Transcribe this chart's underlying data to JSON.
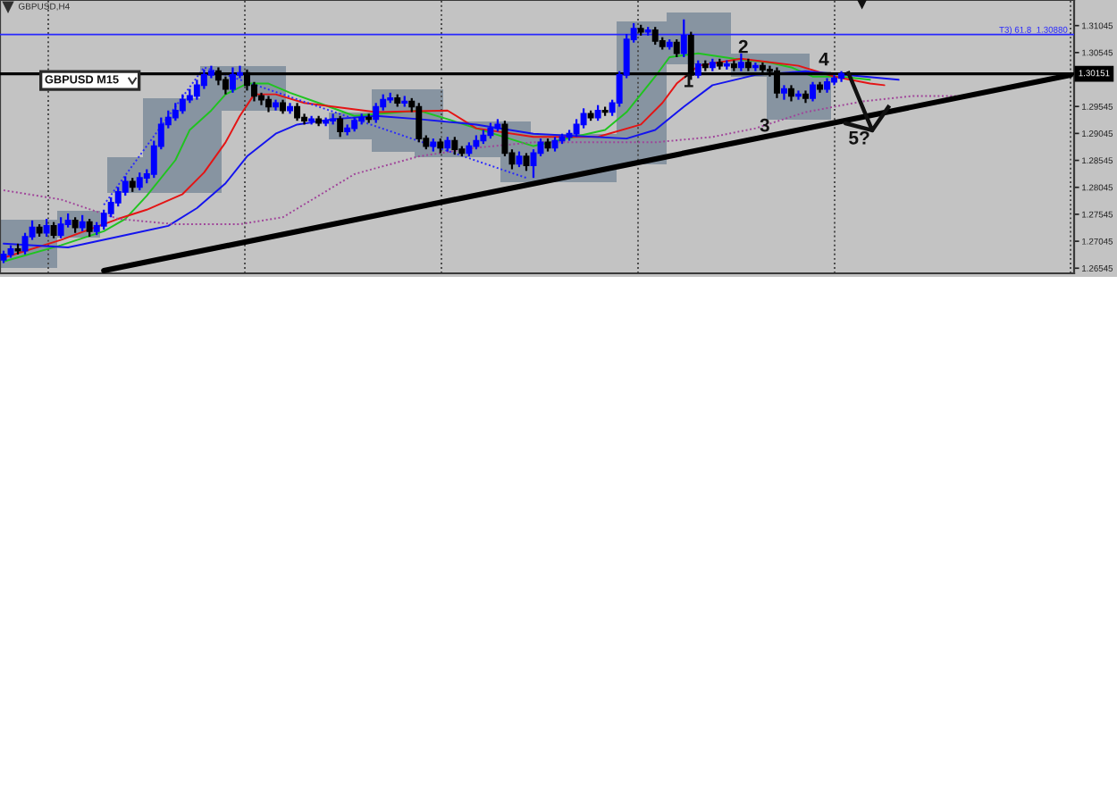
{
  "chart_data": {
    "type": "candlestick",
    "title": "GBPUSD,H4",
    "categories": [
      null,
      null,
      null,
      null,
      null,
      null,
      null,
      null,
      null,
      null,
      null,
      null,
      null,
      null,
      null,
      null,
      null,
      null,
      null,
      null,
      null,
      null,
      null,
      null,
      null,
      null,
      null,
      null,
      null,
      null,
      null,
      null,
      null,
      null,
      null,
      null,
      null,
      null,
      null,
      null,
      null,
      null,
      null,
      null,
      null,
      null,
      null,
      null,
      null,
      null,
      null,
      null,
      null,
      null,
      null,
      null,
      null,
      null,
      null,
      null,
      null,
      null,
      null,
      null,
      null,
      null,
      null,
      null,
      null,
      null,
      null,
      null,
      null,
      null,
      null,
      null,
      null,
      null,
      null,
      null,
      null,
      null,
      null,
      null,
      null,
      null,
      null,
      null,
      null,
      null,
      null,
      null,
      null,
      null,
      null,
      null,
      null,
      null,
      null,
      null,
      null,
      null,
      null,
      null,
      null,
      null,
      null,
      null,
      null,
      null,
      null,
      null,
      null,
      null,
      null,
      null,
      null,
      null,
      null,
      null,
      null,
      null,
      null,
      null,
      null,
      null,
      null,
      null,
      null,
      null,
      null,
      null,
      null,
      null,
      null,
      null,
      null,
      null,
      null,
      null,
      null,
      null,
      null,
      null,
      null,
      null,
      null,
      null,
      null,
      null
    ],
    "ohlc": [
      [
        1.267,
        1.2687,
        1.2664,
        1.268
      ],
      [
        1.268,
        1.2697,
        1.2674,
        1.269
      ],
      [
        1.269,
        1.27,
        1.268,
        1.2687
      ],
      [
        1.2687,
        1.272,
        1.268,
        1.2713
      ],
      [
        1.2713,
        1.2743,
        1.2707,
        1.273
      ],
      [
        1.273,
        1.2736,
        1.2713,
        1.272
      ],
      [
        1.272,
        1.2746,
        1.2713,
        1.2733
      ],
      [
        1.2733,
        1.274,
        1.271,
        1.2716
      ],
      [
        1.2716,
        1.2749,
        1.271,
        1.2736
      ],
      [
        1.2736,
        1.2756,
        1.273,
        1.2743
      ],
      [
        1.2743,
        1.2749,
        1.272,
        1.273
      ],
      [
        1.273,
        1.2753,
        1.2723,
        1.274
      ],
      [
        1.274,
        1.2746,
        1.2713,
        1.2723
      ],
      [
        1.2723,
        1.274,
        1.2716,
        1.2733
      ],
      [
        1.2733,
        1.2763,
        1.2726,
        1.2756
      ],
      [
        1.2756,
        1.2786,
        1.2749,
        1.2776
      ],
      [
        1.2776,
        1.2805,
        1.2769,
        1.2796
      ],
      [
        1.2796,
        1.2825,
        1.2789,
        1.2815
      ],
      [
        1.2815,
        1.2822,
        1.2796,
        1.2805
      ],
      [
        1.2805,
        1.2832,
        1.2799,
        1.2822
      ],
      [
        1.2822,
        1.2838,
        1.2812,
        1.2829
      ],
      [
        1.2829,
        1.2891,
        1.2822,
        1.2881
      ],
      [
        1.2881,
        1.2934,
        1.2875,
        1.2921
      ],
      [
        1.2921,
        1.2947,
        1.2914,
        1.2934
      ],
      [
        1.2934,
        1.2961,
        1.2928,
        1.2947
      ],
      [
        1.2947,
        1.2977,
        1.2941,
        1.2967
      ],
      [
        1.2967,
        1.2987,
        1.2961,
        1.2974
      ],
      [
        1.2974,
        1.3004,
        1.2967,
        1.2994
      ],
      [
        1.2994,
        1.3023,
        1.2987,
        1.3013
      ],
      [
        1.3013,
        1.303,
        1.3007,
        1.302
      ],
      [
        1.302,
        1.3027,
        1.2994,
        1.3004
      ],
      [
        1.3004,
        1.301,
        1.2977,
        1.2987
      ],
      [
        1.2987,
        1.3027,
        1.298,
        1.3013
      ],
      [
        1.3013,
        1.303,
        1.3007,
        1.3017
      ],
      [
        1.3017,
        1.3023,
        1.2984,
        1.2994
      ],
      [
        1.2994,
        1.3,
        1.2964,
        1.2974
      ],
      [
        1.2974,
        1.298,
        1.2957,
        1.2967
      ],
      [
        1.2967,
        1.2974,
        1.2944,
        1.2954
      ],
      [
        1.2954,
        1.2967,
        1.2947,
        1.2961
      ],
      [
        1.2961,
        1.2967,
        1.2941,
        1.2947
      ],
      [
        1.2947,
        1.2961,
        1.2941,
        1.2954
      ],
      [
        1.2954,
        1.2961,
        1.2928,
        1.2934
      ],
      [
        1.2934,
        1.2941,
        1.2921,
        1.2928
      ],
      [
        1.2928,
        1.2937,
        1.2921,
        1.2931
      ],
      [
        1.2931,
        1.2937,
        1.2918,
        1.2924
      ],
      [
        1.2924,
        1.2934,
        1.2918,
        1.2928
      ],
      [
        1.2928,
        1.2941,
        1.2921,
        1.2931
      ],
      [
        1.2931,
        1.2937,
        1.2898,
        1.2908
      ],
      [
        1.2908,
        1.2921,
        1.2901,
        1.2914
      ],
      [
        1.2914,
        1.2934,
        1.2908,
        1.2928
      ],
      [
        1.2928,
        1.2941,
        1.2921,
        1.2934
      ],
      [
        1.2934,
        1.2941,
        1.2924,
        1.2931
      ],
      [
        1.2931,
        1.2961,
        1.2924,
        1.2954
      ],
      [
        1.2954,
        1.2977,
        1.2947,
        1.2967
      ],
      [
        1.2967,
        1.298,
        1.2961,
        1.297
      ],
      [
        1.297,
        1.2977,
        1.2954,
        1.2961
      ],
      [
        1.2961,
        1.2974,
        1.2954,
        1.2964
      ],
      [
        1.2964,
        1.297,
        1.2944,
        1.2954
      ],
      [
        1.2954,
        1.2961,
        1.2888,
        1.2895
      ],
      [
        1.2895,
        1.2901,
        1.2875,
        1.2881
      ],
      [
        1.2881,
        1.2895,
        1.2871,
        1.2888
      ],
      [
        1.2888,
        1.2895,
        1.2868,
        1.2878
      ],
      [
        1.2878,
        1.2898,
        1.2871,
        1.2891
      ],
      [
        1.2891,
        1.2898,
        1.2865,
        1.2875
      ],
      [
        1.2875,
        1.2881,
        1.2862,
        1.2868
      ],
      [
        1.2868,
        1.2888,
        1.2862,
        1.2881
      ],
      [
        1.2881,
        1.2901,
        1.2875,
        1.2891
      ],
      [
        1.2891,
        1.2911,
        1.2885,
        1.2901
      ],
      [
        1.2901,
        1.2924,
        1.2895,
        1.2914
      ],
      [
        1.2914,
        1.2931,
        1.2908,
        1.2921
      ],
      [
        1.2921,
        1.2928,
        1.2862,
        1.2868
      ],
      [
        1.2868,
        1.2875,
        1.2838,
        1.2848
      ],
      [
        1.2848,
        1.2871,
        1.2842,
        1.2862
      ],
      [
        1.2862,
        1.2868,
        1.2835,
        1.2845
      ],
      [
        1.2845,
        1.2875,
        1.2822,
        1.2868
      ],
      [
        1.2868,
        1.2895,
        1.2862,
        1.2888
      ],
      [
        1.2888,
        1.2895,
        1.2871,
        1.2878
      ],
      [
        1.2878,
        1.2898,
        1.2871,
        1.2891
      ],
      [
        1.2891,
        1.2904,
        1.2885,
        1.2898
      ],
      [
        1.2898,
        1.2911,
        1.2891,
        1.2904
      ],
      [
        1.2904,
        1.2931,
        1.2898,
        1.2921
      ],
      [
        1.2921,
        1.2951,
        1.2914,
        1.2941
      ],
      [
        1.2941,
        1.2947,
        1.2928,
        1.2934
      ],
      [
        1.2934,
        1.2957,
        1.2928,
        1.2947
      ],
      [
        1.2947,
        1.2954,
        1.2937,
        1.2944
      ],
      [
        1.2944,
        1.2967,
        1.2937,
        1.2961
      ],
      [
        1.2961,
        1.302,
        1.2954,
        1.3013
      ],
      [
        1.3013,
        1.3089,
        1.3007,
        1.3079
      ],
      [
        1.3079,
        1.3109,
        1.3073,
        1.3099
      ],
      [
        1.3099,
        1.3106,
        1.3086,
        1.3093
      ],
      [
        1.3093,
        1.3102,
        1.3086,
        1.3096
      ],
      [
        1.3096,
        1.3102,
        1.3069,
        1.3076
      ],
      [
        1.3076,
        1.3083,
        1.306,
        1.3066
      ],
      [
        1.3066,
        1.3079,
        1.306,
        1.3073
      ],
      [
        1.3073,
        1.3079,
        1.3046,
        1.3053
      ],
      [
        1.3053,
        1.3116,
        1.3046,
        1.3086
      ],
      [
        1.3086,
        1.3093,
        1.3004,
        1.3013
      ],
      [
        1.3013,
        1.304,
        1.3007,
        1.3033
      ],
      [
        1.3033,
        1.304,
        1.302,
        1.3027
      ],
      [
        1.3027,
        1.3043,
        1.302,
        1.3036
      ],
      [
        1.3036,
        1.3043,
        1.3023,
        1.303
      ],
      [
        1.303,
        1.304,
        1.3023,
        1.3033
      ],
      [
        1.3033,
        1.304,
        1.302,
        1.3027
      ],
      [
        1.3027,
        1.3053,
        1.302,
        1.3036
      ],
      [
        1.3036,
        1.3043,
        1.302,
        1.3027
      ],
      [
        1.3027,
        1.3036,
        1.302,
        1.303
      ],
      [
        1.303,
        1.3036,
        1.3017,
        1.3023
      ],
      [
        1.3023,
        1.303,
        1.301,
        1.302
      ],
      [
        1.302,
        1.3027,
        1.297,
        1.298
      ],
      [
        1.298,
        1.2994,
        1.2967,
        1.2987
      ],
      [
        1.2987,
        1.2994,
        1.2964,
        1.2974
      ],
      [
        1.2974,
        1.2984,
        1.2967,
        1.2977
      ],
      [
        1.2977,
        1.2984,
        1.2961,
        1.297
      ],
      [
        1.297,
        1.3,
        1.2964,
        1.2994
      ],
      [
        1.2994,
        1.3,
        1.298,
        1.2987
      ],
      [
        1.2987,
        1.3007,
        1.298,
        1.3
      ],
      [
        1.3,
        1.3013,
        1.2994,
        1.3007
      ],
      [
        1.3007,
        1.302,
        1.3,
        1.3015
      ],
      null,
      null,
      null,
      null,
      null,
      null,
      null,
      null,
      null,
      null,
      null,
      null,
      null,
      null,
      null,
      null,
      null,
      null,
      null,
      null,
      null,
      null,
      null,
      null,
      null,
      null,
      null,
      null,
      null,
      null,
      null,
      null
    ],
    "colors": [
      "#0000ff",
      "#0000ff",
      "#000000",
      "#0000ff",
      "#0000ff",
      "#000000",
      "#0000ff",
      "#000000",
      "#0000ff",
      "#0000ff",
      "#000000",
      "#0000ff",
      "#000000",
      "#0000ff",
      "#0000ff",
      "#0000ff",
      "#0000ff",
      "#0000ff",
      "#000000",
      "#0000ff",
      "#0000ff",
      "#0000ff",
      "#0000ff",
      "#0000ff",
      "#0000ff",
      "#0000ff",
      "#0000ff",
      "#0000ff",
      "#0000ff",
      "#0000ff",
      "#000000",
      "#000000",
      "#0000ff",
      "#0000ff",
      "#000000",
      "#000000",
      "#000000",
      "#000000",
      "#0000ff",
      "#000000",
      "#0000ff",
      "#000000",
      "#000000",
      "#0000ff",
      "#000000",
      "#0000ff",
      "#0000ff",
      "#000000",
      "#0000ff",
      "#0000ff",
      "#0000ff",
      "#000000",
      "#0000ff",
      "#0000ff",
      "#0000ff",
      "#000000",
      "#0000ff",
      "#000000",
      "#000000",
      "#000000",
      "#0000ff",
      "#000000",
      "#0000ff",
      "#000000",
      "#000000",
      "#0000ff",
      "#0000ff",
      "#0000ff",
      "#0000ff",
      "#0000ff",
      "#000000",
      "#000000",
      "#0000ff",
      "#000000",
      "#0000ff",
      "#0000ff",
      "#000000",
      "#0000ff",
      "#0000ff",
      "#0000ff",
      "#0000ff",
      "#0000ff",
      "#000000",
      "#0000ff",
      "#000000",
      "#0000ff",
      "#0000ff",
      "#0000ff",
      "#0000ff",
      "#000000",
      "#0000ff",
      "#000000",
      "#000000",
      "#0000ff",
      "#000000",
      "#0000ff",
      "#000000",
      "#0000ff",
      "#000000",
      "#0000ff",
      "#000000",
      "#0000ff",
      "#000000",
      "#0000ff",
      "#000000",
      "#0000ff",
      "#000000",
      "#000000",
      "#000000",
      "#0000ff",
      "#000000",
      "#0000ff",
      "#000000",
      "#0000ff",
      "#000000",
      "#0000ff",
      "#0000ff",
      "#0000ff",
      null,
      null,
      null,
      null,
      null,
      null,
      null,
      null,
      null,
      null,
      null,
      null,
      null,
      null,
      null,
      null,
      null,
      null,
      null,
      null,
      null,
      null,
      null,
      null,
      null,
      null,
      null,
      null,
      null,
      null,
      null,
      null
    ],
    "series": [
      {
        "type": "line",
        "color": "#1fc41f",
        "values": [
          1.2667,
          null,
          null,
          null,
          null,
          null,
          null,
          null,
          1.2697,
          null,
          null,
          null,
          null,
          null,
          1.2723,
          null,
          null,
          1.2746,
          null,
          null,
          1.2789,
          null,
          null,
          null,
          1.2855,
          null,
          1.2911,
          null,
          null,
          1.2947,
          null,
          1.2977,
          null,
          null,
          1.2997,
          null,
          null,
          1.2997,
          null,
          null,
          1.298,
          null,
          null,
          null,
          1.2961,
          null,
          null,
          null,
          null,
          1.2937,
          null,
          null,
          null,
          null,
          null,
          null,
          null,
          null,
          1.2947,
          null,
          null,
          null,
          1.2931,
          null,
          null,
          null,
          1.2914,
          null,
          null,
          null,
          null,
          null,
          null,
          null,
          1.2881,
          null,
          null,
          null,
          null,
          null,
          null,
          null,
          null,
          null,
          1.2911,
          null,
          null,
          1.2944,
          null,
          null,
          null,
          1.301,
          null,
          1.3046,
          null,
          null,
          null,
          1.3053,
          null,
          null,
          null,
          null,
          1.3043,
          null,
          null,
          null,
          null,
          1.3036,
          null,
          null,
          1.3027,
          null,
          null,
          1.301,
          null,
          null,
          null,
          1.301,
          null,
          null,
          null,
          1.3004,
          null,
          null,
          null,
          null,
          null,
          null,
          null,
          null,
          null,
          null,
          null,
          null,
          null,
          null,
          null,
          null,
          null,
          null,
          null,
          null,
          null,
          null,
          null,
          null,
          null,
          null,
          null,
          null
        ]
      },
      {
        "type": "line",
        "color": "#e41414",
        "values": [
          1.2674,
          null,
          null,
          null,
          null,
          null,
          null,
          null,
          1.2707,
          null,
          null,
          null,
          null,
          null,
          null,
          null,
          1.2746,
          null,
          null,
          null,
          1.2763,
          null,
          null,
          null,
          null,
          1.2792,
          null,
          null,
          1.2832,
          null,
          null,
          1.2888,
          null,
          1.2937,
          null,
          1.2977,
          null,
          null,
          1.2977,
          null,
          null,
          null,
          1.2961,
          null,
          null,
          null,
          null,
          null,
          null,
          null,
          null,
          null,
          1.2944,
          null,
          null,
          null,
          null,
          null,
          null,
          null,
          null,
          null,
          1.2947,
          null,
          null,
          null,
          1.2914,
          null,
          null,
          null,
          null,
          null,
          null,
          null,
          1.2898,
          null,
          null,
          null,
          null,
          null,
          null,
          null,
          null,
          1.2898,
          null,
          null,
          null,
          null,
          null,
          1.2921,
          null,
          null,
          1.2961,
          null,
          1.2997,
          null,
          null,
          1.303,
          null,
          null,
          null,
          null,
          null,
          1.3043,
          null,
          null,
          null,
          null,
          null,
          null,
          null,
          1.303,
          null,
          null,
          null,
          null,
          1.301,
          null,
          null,
          null,
          null,
          1.2997,
          null,
          1.2994,
          null,
          null,
          null,
          null,
          null,
          null,
          null,
          null,
          null,
          null,
          null,
          null,
          null,
          null,
          null,
          null,
          null,
          null,
          null,
          null,
          null,
          null,
          null,
          null,
          null,
          null
        ]
      },
      {
        "type": "line",
        "color": "#1414ee",
        "values": [
          1.27,
          null,
          null,
          null,
          null,
          null,
          null,
          null,
          null,
          1.2693,
          null,
          null,
          null,
          null,
          null,
          null,
          1.2713,
          null,
          null,
          null,
          null,
          null,
          null,
          1.2733,
          null,
          null,
          null,
          1.2766,
          null,
          null,
          null,
          1.2812,
          null,
          null,
          1.2862,
          null,
          null,
          null,
          1.2904,
          null,
          null,
          1.2921,
          null,
          null,
          null,
          null,
          1.2931,
          null,
          null,
          null,
          null,
          null,
          1.2937,
          null,
          null,
          null,
          null,
          null,
          1.2931,
          null,
          null,
          null,
          null,
          null,
          null,
          null,
          1.2921,
          null,
          null,
          null,
          null,
          null,
          null,
          null,
          1.2904,
          null,
          null,
          null,
          null,
          null,
          null,
          null,
          null,
          null,
          null,
          null,
          null,
          1.2895,
          null,
          null,
          null,
          1.2911,
          null,
          null,
          null,
          1.2954,
          null,
          null,
          null,
          1.2994,
          null,
          null,
          null,
          null,
          null,
          1.3013,
          null,
          null,
          null,
          null,
          null,
          null,
          1.302,
          null,
          null,
          null,
          null,
          null,
          null,
          null,
          null,
          null,
          null,
          null,
          null,
          1.3004,
          null,
          null,
          null,
          null,
          null,
          null,
          null,
          null,
          null,
          null,
          null,
          null,
          null,
          null,
          null,
          null,
          null,
          null,
          null,
          null,
          null,
          null,
          null,
          null
        ]
      },
      {
        "type": "line",
        "color": "#2828ff",
        "line_style": "dotted",
        "values": [
          null,
          null,
          null,
          null,
          null,
          null,
          null,
          null,
          null,
          null,
          null,
          null,
          null,
          null,
          1.2772,
          null,
          null,
          null,
          null,
          null,
          null,
          null,
          null,
          null,
          null,
          null,
          null,
          null,
          1.3027,
          null,
          null,
          null,
          null,
          null,
          null,
          null,
          null,
          null,
          null,
          null,
          null,
          null,
          null,
          null,
          null,
          null,
          null,
          null,
          null,
          null,
          null,
          null,
          null,
          null,
          null,
          null,
          null,
          null,
          null,
          null,
          null,
          null,
          null,
          null,
          null,
          null,
          null,
          null,
          null,
          null,
          null,
          null,
          null,
          1.2822,
          null,
          null,
          null,
          null,
          null,
          null,
          null,
          null,
          null,
          null,
          null,
          null,
          null,
          null,
          null,
          null,
          null,
          null,
          null,
          null,
          null,
          null,
          null,
          null,
          null,
          null,
          null,
          null,
          null,
          null,
          null,
          null,
          null,
          null,
          null,
          null,
          null,
          null,
          null,
          null,
          null,
          null,
          null,
          null,
          null,
          null,
          null,
          null,
          null,
          null,
          null,
          null,
          null,
          null,
          null,
          null,
          null,
          null,
          null,
          null,
          null,
          null,
          null,
          null,
          null,
          null,
          null,
          null,
          null,
          null,
          null,
          null,
          null,
          null,
          null,
          null
        ]
      },
      {
        "type": "line",
        "color": "#a0449a",
        "line_style": "dotted",
        "values": [
          1.2799,
          null,
          null,
          null,
          null,
          null,
          null,
          null,
          1.2782,
          null,
          null,
          null,
          null,
          null,
          null,
          null,
          1.2746,
          null,
          null,
          null,
          null,
          null,
          null,
          null,
          1.2736,
          null,
          null,
          null,
          null,
          null,
          null,
          null,
          null,
          1.2736,
          null,
          null,
          null,
          null,
          null,
          1.2749,
          null,
          null,
          null,
          null,
          1.2789,
          null,
          null,
          null,
          null,
          1.2829,
          null,
          null,
          null,
          null,
          null,
          null,
          null,
          null,
          1.2862,
          null,
          null,
          null,
          null,
          null,
          null,
          null,
          1.2878,
          null,
          null,
          null,
          null,
          null,
          null,
          null,
          1.2888,
          null,
          null,
          null,
          null,
          null,
          null,
          null,
          null,
          null,
          null,
          null,
          null,
          null,
          null,
          null,
          null,
          1.2888,
          null,
          null,
          null,
          null,
          null,
          null,
          null,
          1.2898,
          null,
          null,
          null,
          null,
          null,
          1.2914,
          null,
          null,
          null,
          null,
          null,
          null,
          1.2944,
          null,
          null,
          null,
          null,
          null,
          null,
          null,
          1.2964,
          null,
          null,
          null,
          null,
          null,
          null,
          1.2974,
          null,
          null,
          null,
          null,
          null,
          1.2974,
          null,
          null,
          null,
          null,
          null,
          null,
          null,
          null,
          null,
          null,
          null,
          null,
          null,
          null,
          null,
          null
        ]
      },
      {
        "type": "line",
        "color": "#000000",
        "values": [
          null,
          null,
          null,
          null,
          null,
          null,
          null,
          null,
          null,
          null,
          null,
          null,
          null,
          null,
          1.265,
          null,
          null,
          null,
          null,
          null,
          null,
          null,
          null,
          null,
          null,
          null,
          null,
          null,
          null,
          null,
          null,
          null,
          null,
          null,
          null,
          null,
          null,
          null,
          null,
          null,
          null,
          null,
          null,
          null,
          null,
          null,
          null,
          null,
          null,
          null,
          null,
          null,
          null,
          null,
          null,
          null,
          null,
          null,
          null,
          null,
          null,
          null,
          null,
          null,
          null,
          null,
          null,
          null,
          null,
          null,
          null,
          null,
          null,
          null,
          null,
          null,
          null,
          null,
          null,
          null,
          null,
          null,
          null,
          null,
          null,
          null,
          null,
          null,
          null,
          null,
          null,
          null,
          null,
          null,
          null,
          null,
          null,
          null,
          null,
          null,
          null,
          null,
          null,
          null,
          null,
          null,
          null,
          null,
          null,
          null,
          null,
          null,
          null,
          null,
          null,
          null,
          null,
          null,
          null,
          null,
          null,
          null,
          null,
          null,
          null,
          null,
          null,
          null,
          null,
          null,
          null,
          null,
          null,
          null,
          null,
          null,
          null,
          null,
          null,
          null,
          null,
          null,
          null,
          null,
          null,
          null,
          null,
          null,
          null,
          1.3013
        ]
      }
    ],
    "ylim": [
      1.2645,
      1.3152
    ],
    "yticks": [
      1.31045,
      1.30545,
      {
        "value": 1.30045,
        "label": null
      },
      1.29545,
      1.29045,
      1.28545,
      1.28045,
      1.27545,
      1.27045,
      1.26545
    ],
    "tick_labels": "y",
    "ref_lines": [
      {
        "axis": "y",
        "value": 1.3088,
        "label": "T3) 61.8  1.30880",
        "color": "#2828ff"
      },
      {
        "axis": "y",
        "value": 1.30151,
        "label": "1.30151",
        "color": "#000000"
      }
    ],
    "annotations": [
      "GBPUSD M15",
      "1",
      "2",
      "3",
      "4",
      "5?"
    ]
  }
}
